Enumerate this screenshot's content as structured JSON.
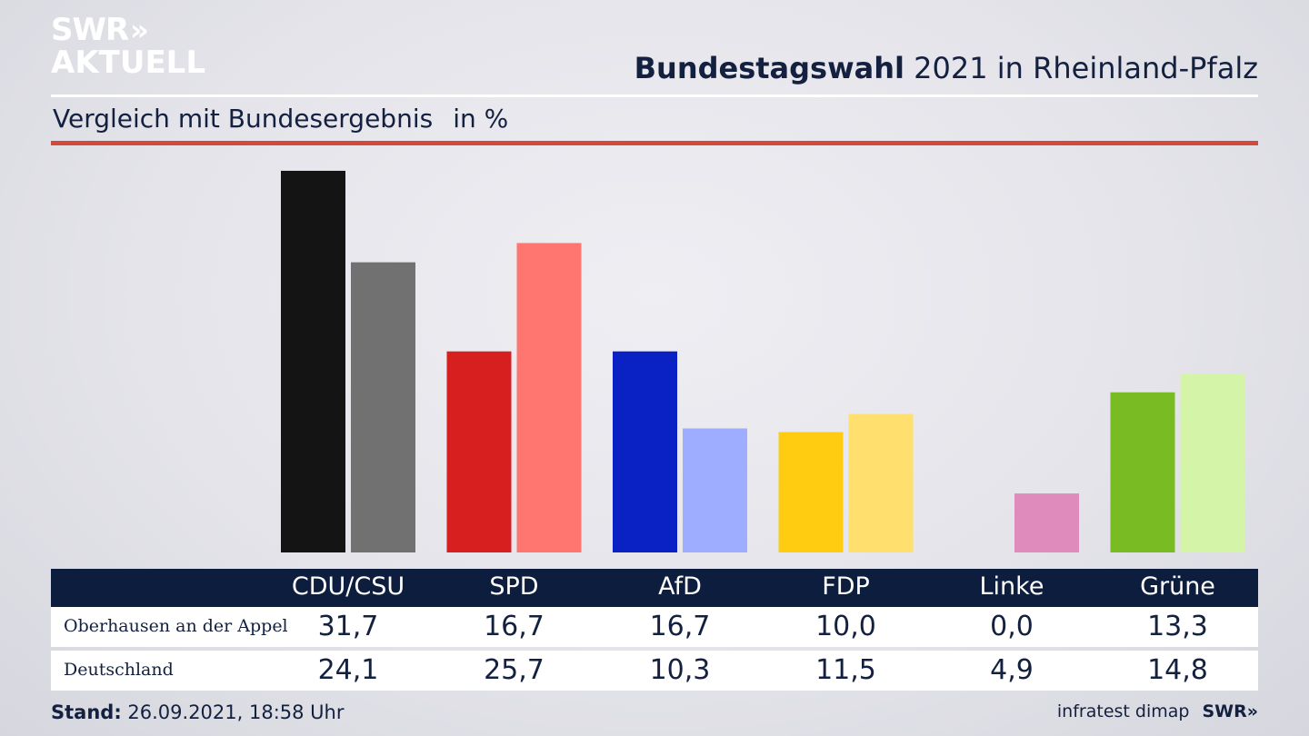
{
  "brand": {
    "line1": "SWR",
    "chevrons": "»",
    "line2": "AKTUELL"
  },
  "header": {
    "title_bold": "Bundestagswahl",
    "title_rest": " 2021 in Rheinland-Pfalz"
  },
  "subtitle": {
    "text": "Vergleich mit Bundesergebnis",
    "unit": "in %"
  },
  "chart_data": {
    "type": "bar",
    "title": "Bundestagswahl 2021 in Rheinland-Pfalz",
    "subtitle": "Vergleich mit Bundesergebnis in %",
    "categories": [
      "CDU/CSU",
      "SPD",
      "AfD",
      "FDP",
      "Linke",
      "Grüne"
    ],
    "series": [
      {
        "name": "Oberhausen an der Appel",
        "values": [
          31.7,
          16.7,
          16.7,
          10.0,
          0.0,
          13.3
        ],
        "display": [
          "31,7",
          "16,7",
          "16,7",
          "10,0",
          "0,0",
          "13,3"
        ]
      },
      {
        "name": "Deutschland",
        "values": [
          24.1,
          25.7,
          10.3,
          11.5,
          4.9,
          14.8
        ],
        "display": [
          "24,1",
          "25,7",
          "10,3",
          "11,5",
          "4,9",
          "14,8"
        ]
      }
    ],
    "colors": {
      "Oberhausen an der Appel": [
        "#141414",
        "#d81f1f",
        "#0a22c4",
        "#ffcc12",
        "#c0307a",
        "#78bb22"
      ],
      "Deutschland": [
        "#717171",
        "#ff7570",
        "#9eadff",
        "#ffe06e",
        "#df8bbc",
        "#d4f5a7"
      ]
    },
    "ylim": [
      0,
      32
    ],
    "grid": false,
    "legend": "table-below"
  },
  "footer": {
    "stand_label": "Stand:",
    "stand_value": " 26.09.2021, 18:58 Uhr",
    "source": "infratest dimap",
    "logo": "SWR»"
  }
}
